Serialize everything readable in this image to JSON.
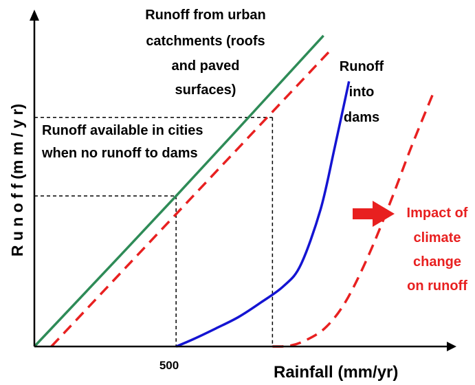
{
  "chart_data": {
    "type": "line",
    "xlabel": "Rainfall (mm/yr)",
    "ylabel": "R u n o f f  (m m / y r)",
    "x_tick_labels": [
      {
        "x": 500,
        "label": "500"
      }
    ],
    "series": [
      {
        "key": "urban",
        "color": "#2e8b57",
        "style": "solid",
        "points": [
          [
            0,
            0
          ],
          [
            500,
            0.46
          ],
          [
            1020,
            0.95
          ]
        ]
      },
      {
        "key": "urban_climate",
        "color": "#e82020",
        "style": "dashed",
        "points": [
          [
            60,
            0
          ],
          [
            1050,
            0.91
          ]
        ]
      },
      {
        "key": "dams",
        "color": "#1414d2",
        "style": "solid",
        "points": [
          [
            500,
            0
          ],
          [
            560,
            0.022
          ],
          [
            640,
            0.055
          ],
          [
            720,
            0.09
          ],
          [
            800,
            0.135
          ],
          [
            880,
            0.185
          ],
          [
            940,
            0.25
          ],
          [
            1010,
            0.42
          ],
          [
            1060,
            0.61
          ],
          [
            1110,
            0.81
          ]
        ]
      },
      {
        "key": "dams_climate",
        "color": "#e82020",
        "style": "dashed",
        "points": [
          [
            840,
            0
          ],
          [
            900,
            0.002
          ],
          [
            960,
            0.02
          ],
          [
            1030,
            0.06
          ],
          [
            1100,
            0.14
          ],
          [
            1180,
            0.28
          ],
          [
            1260,
            0.45
          ],
          [
            1330,
            0.61
          ],
          [
            1410,
            0.78
          ]
        ]
      }
    ],
    "reference_lines": [
      {
        "from": [
          0,
          0.46
        ],
        "to": [
          500,
          0.46
        ]
      },
      {
        "from": [
          500,
          0.46
        ],
        "to": [
          500,
          0
        ]
      },
      {
        "from": [
          0,
          0.7
        ],
        "to": [
          840,
          0.7
        ]
      },
      {
        "from": [
          840,
          0.7
        ],
        "to": [
          840,
          0
        ]
      }
    ],
    "annotations": {
      "urban_runoff": [
        "Runoff from urban",
        "catchments (roofs",
        "and paved",
        "surfaces)"
      ],
      "available_in_cities": [
        "Runoff available in cities",
        "when no runoff to dams"
      ],
      "runoff_into_dams": [
        "Runoff",
        "into",
        "dams"
      ],
      "climate_impact": [
        "Impact of",
        "climate",
        "change",
        "on runoff"
      ]
    },
    "colors": {
      "axis": "#000000",
      "urban": "#2e8b57",
      "dams": "#1414d2",
      "climate": "#e82020",
      "reference": "#000000"
    }
  }
}
